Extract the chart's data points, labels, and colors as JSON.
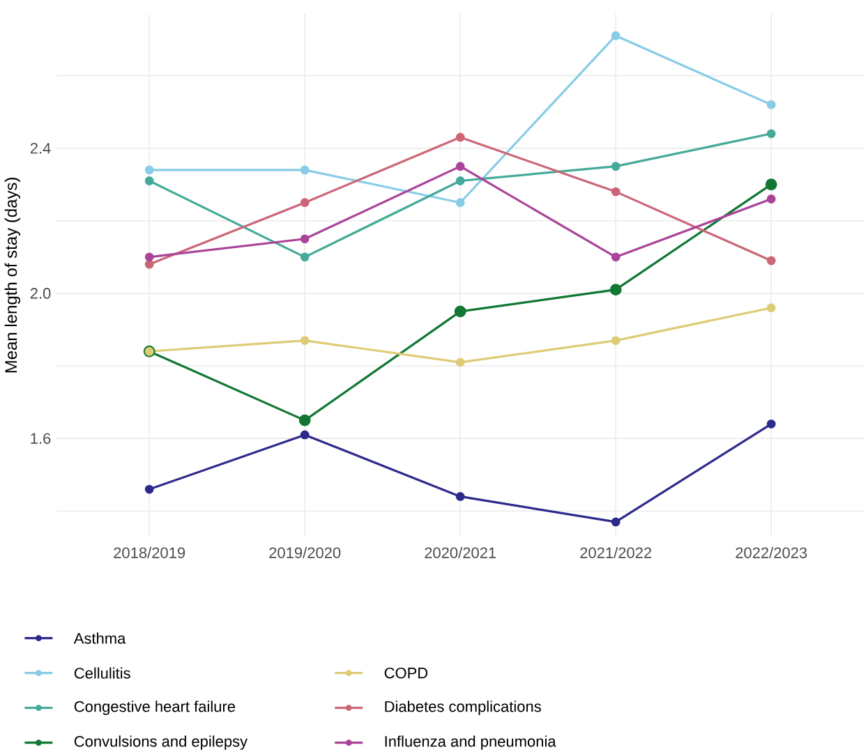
{
  "chart_data": {
    "type": "line",
    "ylabel": "Mean length of stay (days)",
    "categories": [
      "2018/2019",
      "2019/2020",
      "2020/2021",
      "2021/2022",
      "2022/2023"
    ],
    "ylim": [
      1.33,
      2.77
    ],
    "yticks": [
      {
        "value": 1.4,
        "label": null
      },
      1.6,
      {
        "value": 1.8,
        "label": null
      },
      {
        "value": 2.0,
        "label": "2.0"
      },
      {
        "value": 2.2,
        "label": null
      },
      2.4,
      {
        "value": 2.6,
        "label": null
      }
    ],
    "grid": true,
    "legend": "bottom",
    "marker": "circle",
    "line_style": "solid",
    "series": [
      {
        "name": "Asthma",
        "color": "#2e2a8c",
        "values": [
          1.46,
          1.61,
          1.44,
          1.37,
          1.64
        ]
      },
      {
        "name": "Cellulitis",
        "color": "#88cce8",
        "values": [
          2.34,
          2.34,
          2.25,
          2.71,
          2.52
        ]
      },
      {
        "name": "Congestive heart failure",
        "color": "#44aa99",
        "values": [
          2.31,
          2.1,
          2.31,
          2.35,
          2.44
        ]
      },
      {
        "name": "Convulsions and epilepsy",
        "color": "#117733",
        "values": [
          1.84,
          1.65,
          1.95,
          2.01,
          2.3
        ]
      },
      {
        "name": "COPD",
        "color": "#ddcc77",
        "values": [
          1.84,
          1.87,
          1.81,
          1.87,
          1.96
        ]
      },
      {
        "name": "Diabetes complications",
        "color": "#cc6677",
        "values": [
          2.08,
          2.25,
          2.43,
          2.28,
          2.09
        ]
      },
      {
        "name": "Influenza and pneumonia",
        "color": "#aa4499",
        "values": [
          2.1,
          2.15,
          2.35,
          2.1,
          2.26
        ]
      }
    ]
  }
}
